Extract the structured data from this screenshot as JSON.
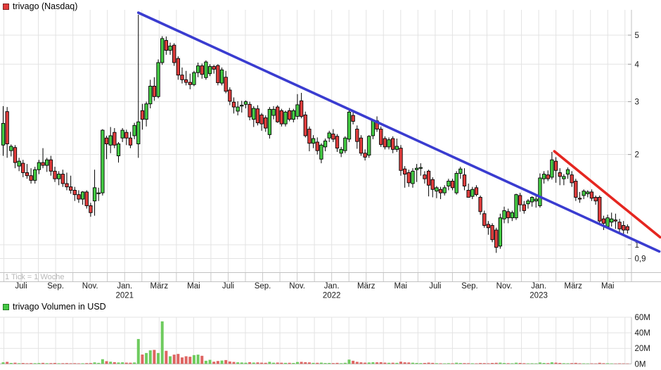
{
  "header": {
    "legend_label": "trivago (Nasdaq)",
    "swatch_color": "#e23b3b",
    "swatch_border": "#7a2424"
  },
  "volume_header": {
    "legend_label": "trivago Volumen in USD",
    "swatch_color": "#46c846",
    "swatch_border": "#1e7d1e"
  },
  "tick_note": "1 Tick = 1 Woche",
  "chart_data": {
    "type": "candlestick",
    "title": "trivago (Nasdaq)",
    "subtitle_volume": "trivago Volumen in USD",
    "tick_interval": "1 Tick = 1 Woche",
    "x_axis": {
      "tick_labels": [
        "Juli",
        "Sep.",
        "Nov.",
        "Jan.",
        "März",
        "Mai",
        "Juli",
        "Sep.",
        "Nov.",
        "Jan.",
        "März",
        "Mai",
        "Juli",
        "Sep.",
        "Nov.",
        "Jan.",
        "März",
        "Mai"
      ],
      "year_labels": [
        {
          "text": "2021",
          "tick_index": 3
        },
        {
          "text": "2022",
          "tick_index": 9
        },
        {
          "text": "2023",
          "tick_index": 15
        }
      ]
    },
    "y_axis": {
      "scale": "log",
      "tick_labels": [
        "5",
        "4",
        "3",
        "2",
        "1",
        "0,9"
      ],
      "tick_values": [
        5,
        4,
        3,
        2,
        1,
        0.9
      ]
    },
    "volume_axis": {
      "unit": "millions USD",
      "tick_labels": [
        "60M",
        "40M",
        "20M",
        "0M"
      ],
      "tick_values": [
        60,
        40,
        20,
        0
      ]
    },
    "legend_position": "top-left",
    "grid": true,
    "candles_ohlcv": [
      [
        2.15,
        2.9,
        1.98,
        2.54,
        2.0
      ],
      [
        2.78,
        2.88,
        1.95,
        2.17,
        2.6
      ],
      [
        2.06,
        2.16,
        1.97,
        2.13,
        1.2
      ],
      [
        2.11,
        2.15,
        1.8,
        1.88,
        1.5
      ],
      [
        1.83,
        1.95,
        1.76,
        1.9,
        0.9
      ],
      [
        1.87,
        1.92,
        1.68,
        1.74,
        1.1
      ],
      [
        1.74,
        1.86,
        1.66,
        1.7,
        0.8
      ],
      [
        1.7,
        1.8,
        1.6,
        1.64,
        1.0
      ],
      [
        1.64,
        1.82,
        1.6,
        1.78,
        0.9
      ],
      [
        1.78,
        1.92,
        1.72,
        1.88,
        1.1
      ],
      [
        1.88,
        2.1,
        1.8,
        1.84,
        1.3
      ],
      [
        1.84,
        1.95,
        1.75,
        1.92,
        0.9
      ],
      [
        1.92,
        1.98,
        1.7,
        1.76,
        1.0
      ],
      [
        1.76,
        1.82,
        1.62,
        1.66,
        1.2
      ],
      [
        1.66,
        1.76,
        1.58,
        1.72,
        0.8
      ],
      [
        1.72,
        1.78,
        1.56,
        1.6,
        0.9
      ],
      [
        1.6,
        1.74,
        1.52,
        1.56,
        1.0
      ],
      [
        1.56,
        1.7,
        1.48,
        1.52,
        0.8
      ],
      [
        1.52,
        1.56,
        1.4,
        1.47,
        0.9
      ],
      [
        1.47,
        1.52,
        1.38,
        1.42,
        0.7
      ],
      [
        1.42,
        1.51,
        1.36,
        1.5,
        0.8
      ],
      [
        1.5,
        1.52,
        1.32,
        1.35,
        1.0
      ],
      [
        1.35,
        1.38,
        1.24,
        1.28,
        1.1
      ],
      [
        1.4,
        1.78,
        1.25,
        1.55,
        1.9
      ],
      [
        1.48,
        1.55,
        1.4,
        1.49,
        1.3
      ],
      [
        1.49,
        2.43,
        1.46,
        2.41,
        6.0
      ],
      [
        2.27,
        2.31,
        1.93,
        2.17,
        3.5
      ],
      [
        2.15,
        2.47,
        2.02,
        2.31,
        2.8
      ],
      [
        2.37,
        2.45,
        2.1,
        2.15,
        2.2
      ],
      [
        1.98,
        2.2,
        1.88,
        2.17,
        1.8
      ],
      [
        2.27,
        2.45,
        2.2,
        2.41,
        2.0
      ],
      [
        2.37,
        2.42,
        2.15,
        2.27,
        1.6
      ],
      [
        2.27,
        2.38,
        2.1,
        2.15,
        1.5
      ],
      [
        2.31,
        2.55,
        2.25,
        2.5,
        1.8
      ],
      [
        2.17,
        5.85,
        1.95,
        2.57,
        32.0
      ],
      [
        2.8,
        2.95,
        2.42,
        2.62,
        12.0
      ],
      [
        2.62,
        3.0,
        2.48,
        2.95,
        14.0
      ],
      [
        2.95,
        3.55,
        2.85,
        3.38,
        17.4
      ],
      [
        3.38,
        3.62,
        3.02,
        3.12,
        18.0
      ],
      [
        3.12,
        4.15,
        3.08,
        4.05,
        14.0
      ],
      [
        4.05,
        4.96,
        3.98,
        4.87,
        54.7
      ],
      [
        4.8,
        4.95,
        4.3,
        4.45,
        16.8
      ],
      [
        4.45,
        4.72,
        4.3,
        4.6,
        9.8
      ],
      [
        4.63,
        4.7,
        3.95,
        4.05,
        11.9
      ],
      [
        4.18,
        4.25,
        3.55,
        3.68,
        12.8
      ],
      [
        3.68,
        3.9,
        3.45,
        3.55,
        8.3
      ],
      [
        3.55,
        3.8,
        3.4,
        3.48,
        9.8
      ],
      [
        3.48,
        3.72,
        3.3,
        3.42,
        9.2
      ],
      [
        3.42,
        3.8,
        3.38,
        3.75,
        11.3
      ],
      [
        3.75,
        4.05,
        3.62,
        3.95,
        11.9
      ],
      [
        3.95,
        4.02,
        3.58,
        3.7,
        10.4
      ],
      [
        3.61,
        4.12,
        3.55,
        4.07,
        4.0
      ],
      [
        3.72,
        4.0,
        3.65,
        3.93,
        5.2
      ],
      [
        3.93,
        3.98,
        3.72,
        3.85,
        2.8
      ],
      [
        3.96,
        4.0,
        3.4,
        3.47,
        3.7
      ],
      [
        3.46,
        3.9,
        3.4,
        3.83,
        4.3
      ],
      [
        3.62,
        3.8,
        3.2,
        3.25,
        4.9
      ],
      [
        3.28,
        3.35,
        2.92,
        3.01,
        3.1
      ],
      [
        2.99,
        3.1,
        2.74,
        2.88,
        2.5
      ],
      [
        2.79,
        3.01,
        2.7,
        2.88,
        2.0
      ],
      [
        2.9,
        3.02,
        2.76,
        2.92,
        1.8
      ],
      [
        2.94,
        3.03,
        2.85,
        3.0,
        1.5
      ],
      [
        2.94,
        3.0,
        2.6,
        2.67,
        2.2
      ],
      [
        2.62,
        2.9,
        2.47,
        2.85,
        1.7
      ],
      [
        2.84,
        2.92,
        2.5,
        2.55,
        1.9
      ],
      [
        2.71,
        2.75,
        2.4,
        2.53,
        1.6
      ],
      [
        2.65,
        2.7,
        2.38,
        2.45,
        1.4
      ],
      [
        2.33,
        2.88,
        2.26,
        2.83,
        2.6
      ],
      [
        2.7,
        2.9,
        2.62,
        2.83,
        1.5
      ],
      [
        2.88,
        2.92,
        2.55,
        2.57,
        1.7
      ],
      [
        2.8,
        2.84,
        2.48,
        2.53,
        1.5
      ],
      [
        2.53,
        2.8,
        2.48,
        2.77,
        1.3
      ],
      [
        2.8,
        2.86,
        2.58,
        2.62,
        1.4
      ],
      [
        2.62,
        2.84,
        2.56,
        2.8,
        1.2
      ],
      [
        2.68,
        3.18,
        2.62,
        2.93,
        2.4
      ],
      [
        3.02,
        3.21,
        2.64,
        2.68,
        2.6
      ],
      [
        2.71,
        2.78,
        2.28,
        2.31,
        2.2
      ],
      [
        2.43,
        2.48,
        2.05,
        2.18,
        1.9
      ],
      [
        2.18,
        2.32,
        2.1,
        2.26,
        1.3
      ],
      [
        2.2,
        2.28,
        2.0,
        2.06,
        1.4
      ],
      [
        1.93,
        2.18,
        1.87,
        2.15,
        1.6
      ],
      [
        2.12,
        2.26,
        2.05,
        2.22,
        1.1
      ],
      [
        2.27,
        2.4,
        2.2,
        2.36,
        1.2
      ],
      [
        2.34,
        2.43,
        2.2,
        2.25,
        1.0
      ],
      [
        2.3,
        2.34,
        2.04,
        2.1,
        1.3
      ],
      [
        2.02,
        2.12,
        1.96,
        2.08,
        0.9
      ],
      [
        2.06,
        2.3,
        2.02,
        2.27,
        1.4
      ],
      [
        2.25,
        2.85,
        2.2,
        2.77,
        5.5
      ],
      [
        2.7,
        2.78,
        2.52,
        2.58,
        4.0
      ],
      [
        2.43,
        2.5,
        2.09,
        2.21,
        2.6
      ],
      [
        2.27,
        2.32,
        1.98,
        2.02,
        2.0
      ],
      [
        2.02,
        2.08,
        1.91,
        1.96,
        1.6
      ],
      [
        1.99,
        2.32,
        1.95,
        2.3,
        1.8
      ],
      [
        2.31,
        2.62,
        2.25,
        2.59,
        2.1
      ],
      [
        2.59,
        2.68,
        2.38,
        2.43,
        2.0
      ],
      [
        2.43,
        2.48,
        2.12,
        2.16,
        2.2
      ],
      [
        2.26,
        2.3,
        2.08,
        2.12,
        1.6
      ],
      [
        2.12,
        2.28,
        2.08,
        2.24,
        1.4
      ],
      [
        2.26,
        2.3,
        2.02,
        2.08,
        1.5
      ],
      [
        2.08,
        2.26,
        2.04,
        2.13,
        1.3
      ],
      [
        2.1,
        2.15,
        1.7,
        1.77,
        2.8
      ],
      [
        1.79,
        1.83,
        1.55,
        1.72,
        2.0
      ],
      [
        1.74,
        1.78,
        1.56,
        1.61,
        1.8
      ],
      [
        1.6,
        1.8,
        1.55,
        1.76,
        1.5
      ],
      [
        1.78,
        1.86,
        1.62,
        1.8,
        1.2
      ],
      [
        1.81,
        1.87,
        1.7,
        1.81,
        1.0
      ],
      [
        1.71,
        1.76,
        1.6,
        1.66,
        1.2
      ],
      [
        1.76,
        1.78,
        1.45,
        1.58,
        1.6
      ],
      [
        1.65,
        1.68,
        1.44,
        1.53,
        1.3
      ],
      [
        1.51,
        1.57,
        1.43,
        1.55,
        0.9
      ],
      [
        1.53,
        1.56,
        1.42,
        1.49,
        0.8
      ],
      [
        1.49,
        1.58,
        1.46,
        1.55,
        0.7
      ],
      [
        1.57,
        1.66,
        1.52,
        1.63,
        0.9
      ],
      [
        1.63,
        1.66,
        1.52,
        1.55,
        0.8
      ],
      [
        1.49,
        1.76,
        1.47,
        1.73,
        1.5
      ],
      [
        1.73,
        1.82,
        1.66,
        1.79,
        1.1
      ],
      [
        1.71,
        1.8,
        1.52,
        1.57,
        1.0
      ],
      [
        1.52,
        1.6,
        1.44,
        1.44,
        0.9
      ],
      [
        1.45,
        1.56,
        1.42,
        1.53,
        0.8
      ],
      [
        1.55,
        1.58,
        1.45,
        1.47,
        0.7
      ],
      [
        1.44,
        1.46,
        1.26,
        1.29,
        1.1
      ],
      [
        1.27,
        1.3,
        1.14,
        1.16,
        1.0
      ],
      [
        1.17,
        1.2,
        1.08,
        1.14,
        0.8
      ],
      [
        1.16,
        1.18,
        1.02,
        1.04,
        1.2
      ],
      [
        1.12,
        1.14,
        0.94,
        0.98,
        1.4
      ],
      [
        0.99,
        1.27,
        0.97,
        1.23,
        1.6
      ],
      [
        1.22,
        1.34,
        1.18,
        1.3,
        1.1
      ],
      [
        1.29,
        1.32,
        1.18,
        1.23,
        0.9
      ],
      [
        1.23,
        1.3,
        1.2,
        1.28,
        0.8
      ],
      [
        1.23,
        1.48,
        1.21,
        1.47,
        1.5
      ],
      [
        1.46,
        1.49,
        1.29,
        1.36,
        1.2
      ],
      [
        1.36,
        1.4,
        1.27,
        1.3,
        0.9
      ],
      [
        1.37,
        1.42,
        1.32,
        1.4,
        0.7
      ],
      [
        1.39,
        1.45,
        1.34,
        1.44,
        0.8
      ],
      [
        1.4,
        1.46,
        1.33,
        1.42,
        0.7
      ],
      [
        1.35,
        1.73,
        1.33,
        1.67,
        1.8
      ],
      [
        1.66,
        1.76,
        1.6,
        1.72,
        1.2
      ],
      [
        1.71,
        1.77,
        1.63,
        1.66,
        1.0
      ],
      [
        1.68,
        2.04,
        1.65,
        1.92,
        2.0
      ],
      [
        1.9,
        1.96,
        1.61,
        1.77,
        1.6
      ],
      [
        1.74,
        1.8,
        1.58,
        1.69,
        1.2
      ],
      [
        1.66,
        1.72,
        1.58,
        1.69,
        0.9
      ],
      [
        1.72,
        1.81,
        1.66,
        1.78,
        0.8
      ],
      [
        1.71,
        1.76,
        1.56,
        1.61,
        1.0
      ],
      [
        1.63,
        1.66,
        1.4,
        1.44,
        1.3
      ],
      [
        1.43,
        1.5,
        1.38,
        1.42,
        0.8
      ],
      [
        1.46,
        1.53,
        1.42,
        1.51,
        0.7
      ],
      [
        1.48,
        1.52,
        1.44,
        1.5,
        0.6
      ],
      [
        1.5,
        1.53,
        1.4,
        1.43,
        0.7
      ],
      [
        1.44,
        1.46,
        1.36,
        1.4,
        0.6
      ],
      [
        1.44,
        1.46,
        1.18,
        1.2,
        1.4
      ],
      [
        1.22,
        1.25,
        1.12,
        1.18,
        0.9
      ],
      [
        1.15,
        1.26,
        1.13,
        1.23,
        0.8
      ],
      [
        1.19,
        1.28,
        1.15,
        1.22,
        0.6
      ],
      [
        1.21,
        1.27,
        1.13,
        1.2,
        0.5
      ],
      [
        1.19,
        1.22,
        1.1,
        1.13,
        0.7
      ],
      [
        1.16,
        1.2,
        1.08,
        1.12,
        0.6
      ],
      [
        1.15,
        1.17,
        1.09,
        1.12,
        0.5
      ]
    ],
    "trendlines": [
      {
        "name": "primary-downtrend-line",
        "color": "#3a3cd0",
        "from": {
          "week": 34.0,
          "price": 5.94
        },
        "to": {
          "week": 165.0,
          "price": 0.95
        }
      },
      {
        "name": "secondary-downtrend-line",
        "color": "#e52620",
        "from": {
          "week": 138.6,
          "price": 2.05
        },
        "to": {
          "week": 165.2,
          "price": 1.06
        }
      }
    ],
    "colors": {
      "up": "#44cd44",
      "down": "#e23d3d",
      "candle_border": "#000000",
      "volume_up": "#6ecb5e",
      "volume_down": "#de6562",
      "grid": "#e3e3e3",
      "border": "#c2c2c2",
      "axis_text": "#1a1a1a",
      "trend_blue": "#3a3cd0",
      "trend_red": "#e52620"
    }
  }
}
